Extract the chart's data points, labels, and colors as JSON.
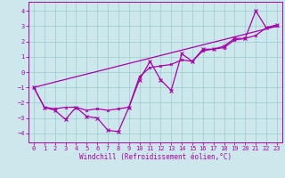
{
  "xlabel": "Windchill (Refroidissement éolien,°C)",
  "bg_color": "#cce8ec",
  "grid_color": "#99cccc",
  "line_color": "#aa00aa",
  "spine_color": "#aa00aa",
  "xlim": [
    -0.5,
    23.5
  ],
  "ylim": [
    -4.6,
    4.6
  ],
  "yticks": [
    -4,
    -3,
    -2,
    -1,
    0,
    1,
    2,
    3,
    4
  ],
  "xticks": [
    0,
    1,
    2,
    3,
    4,
    5,
    6,
    7,
    8,
    9,
    10,
    11,
    12,
    13,
    14,
    15,
    16,
    17,
    18,
    19,
    20,
    21,
    22,
    23
  ],
  "series1_x": [
    0,
    1,
    2,
    3,
    4,
    5,
    6,
    7,
    8,
    9,
    10,
    11,
    12,
    13,
    14,
    15,
    16,
    17,
    18,
    19,
    20,
    21,
    22,
    23
  ],
  "series1_y": [
    -1.0,
    -2.3,
    -2.5,
    -3.1,
    -2.3,
    -2.9,
    -3.0,
    -3.8,
    -3.9,
    -2.3,
    -0.5,
    0.7,
    -0.5,
    -1.2,
    1.2,
    0.7,
    1.5,
    1.5,
    1.7,
    2.2,
    2.2,
    4.0,
    2.9,
    3.1
  ],
  "series2_x": [
    0,
    1,
    2,
    3,
    4,
    5,
    6,
    7,
    8,
    9,
    10,
    11,
    12,
    13,
    14,
    15,
    16,
    17,
    18,
    19,
    20,
    21,
    22,
    23
  ],
  "series2_y": [
    -1.0,
    -2.3,
    -2.4,
    -2.3,
    -2.3,
    -2.5,
    -2.4,
    -2.5,
    -2.4,
    -2.3,
    -0.3,
    0.3,
    0.4,
    0.5,
    0.8,
    0.7,
    1.4,
    1.5,
    1.6,
    2.1,
    2.2,
    2.4,
    2.9,
    3.0
  ],
  "series3_x": [
    0,
    23
  ],
  "series3_y": [
    -1.0,
    3.0
  ],
  "xlabel_fontsize": 5.5,
  "tick_fontsize": 5.0,
  "lw": 0.9,
  "marker_size": 2.5
}
